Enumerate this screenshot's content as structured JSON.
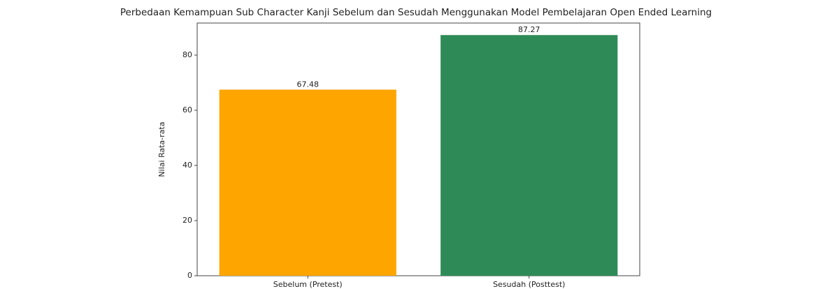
{
  "chart_data": {
    "type": "bar",
    "title": "Perbedaan Kemampuan Sub Character Kanji Sebelum dan Sesudah Menggunakan Model Pembelajaran Open Ended Learning",
    "y_label": "Nilai Rata-rata",
    "categories": [
      "Sebelum (Pretest)",
      "Sesudah (Posttest)"
    ],
    "values": [
      67.48,
      87.27
    ],
    "colors": [
      "#ffa500",
      "#2e8b57"
    ],
    "ylim": [
      0,
      91.63
    ],
    "yticks": [
      0,
      20,
      40,
      60,
      80
    ],
    "grid": false
  }
}
